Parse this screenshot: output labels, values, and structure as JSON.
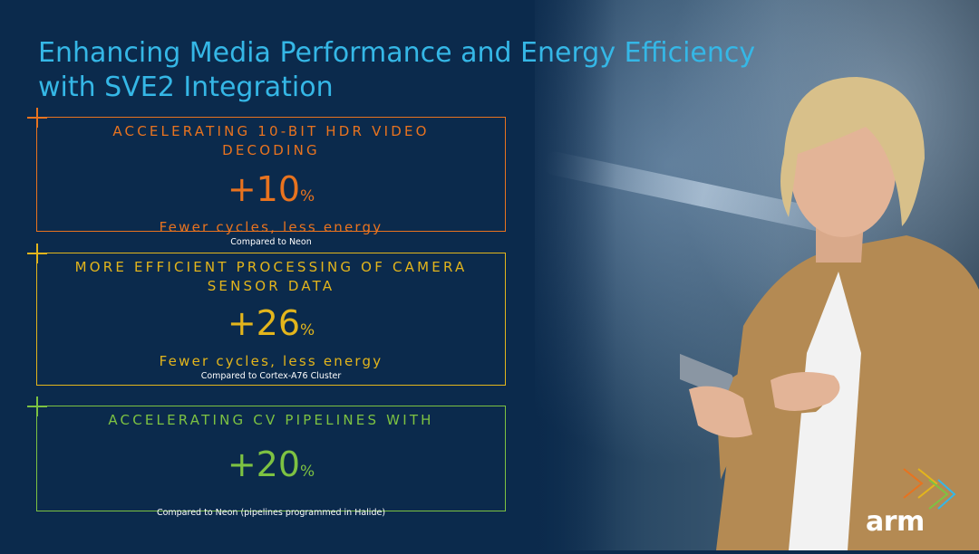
{
  "slide": {
    "title_line1": "Enhancing Media Performance and Energy Efficiency",
    "title_line2": "with SVE2 Integration"
  },
  "cards": [
    {
      "heading": "ACCELERATING 10-BIT HDR VIDEO DECODING",
      "value": "+10",
      "unit": "%",
      "subtitle": "Fewer cycles, less energy",
      "note": "Compared to Neon",
      "color": "#e8731f"
    },
    {
      "heading_line1": "MORE EFFICIENT PROCESSING OF CAMERA",
      "heading_line2": "SENSOR DATA",
      "value": "+26",
      "unit": "%",
      "subtitle": "Fewer cycles, less energy",
      "note": "Compared to Cortex-A76 Cluster",
      "color": "#e3b51c"
    },
    {
      "heading": "ACCELERATING CV PIPELINES WITH",
      "value": "+20",
      "unit": "%",
      "note": "Compared to Neon (pipelines programmed in Halide)",
      "color": "#7dc242"
    }
  ],
  "brand": {
    "logo_text": "arm",
    "accent_colors": [
      "#e8731f",
      "#e3b51c",
      "#7dc242",
      "#35b7e6"
    ]
  },
  "icons": {
    "corner_marker": "plus-crosshair-icon",
    "brand_mark": "chevron-arrows-icon"
  }
}
